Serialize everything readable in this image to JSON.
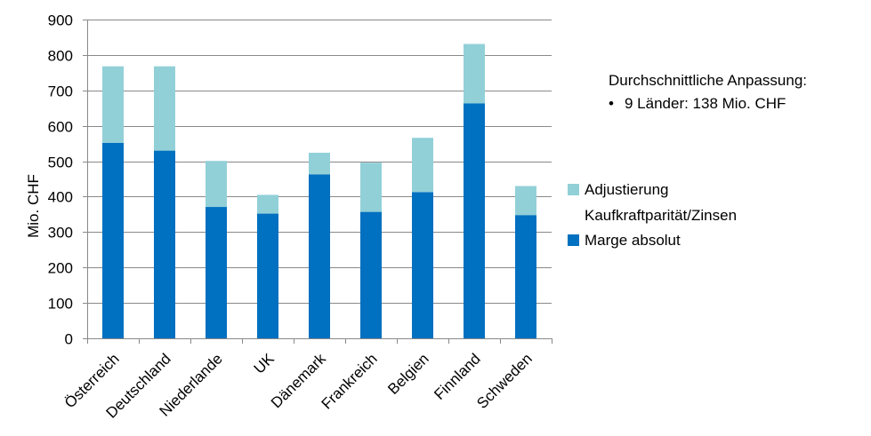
{
  "chart_data": {
    "type": "bar",
    "stacked": true,
    "categories": [
      "Österreich",
      "Deutschland",
      "Niederlande",
      "UK",
      "Dänemark",
      "Frankreich",
      "Belgien",
      "Finnland",
      "Schweden"
    ],
    "series": [
      {
        "name": "Marge absolut",
        "color": "#0070c0",
        "values": [
          552,
          530,
          371,
          352,
          463,
          357,
          413,
          663,
          348
        ]
      },
      {
        "name": "Adjustierung Kaufkraftparität/Zinsen",
        "name_lines": [
          "Adjustierung",
          "Kaufkraftparität/Zinsen"
        ],
        "color": "#92d0d8",
        "values": [
          216,
          238,
          130,
          53,
          61,
          139,
          153,
          168,
          82
        ]
      }
    ],
    "ylabel": "Mio. CHF",
    "xlabel": "",
    "ylim": [
      0,
      900
    ],
    "yticks": [
      0,
      100,
      200,
      300,
      400,
      500,
      600,
      700,
      800,
      900
    ],
    "grid": true,
    "legend": "right",
    "annotation": {
      "title": "Durchschnittliche Anpassung:",
      "bullet": "•",
      "item": "9 Länder: 138 Mio. CHF"
    }
  }
}
